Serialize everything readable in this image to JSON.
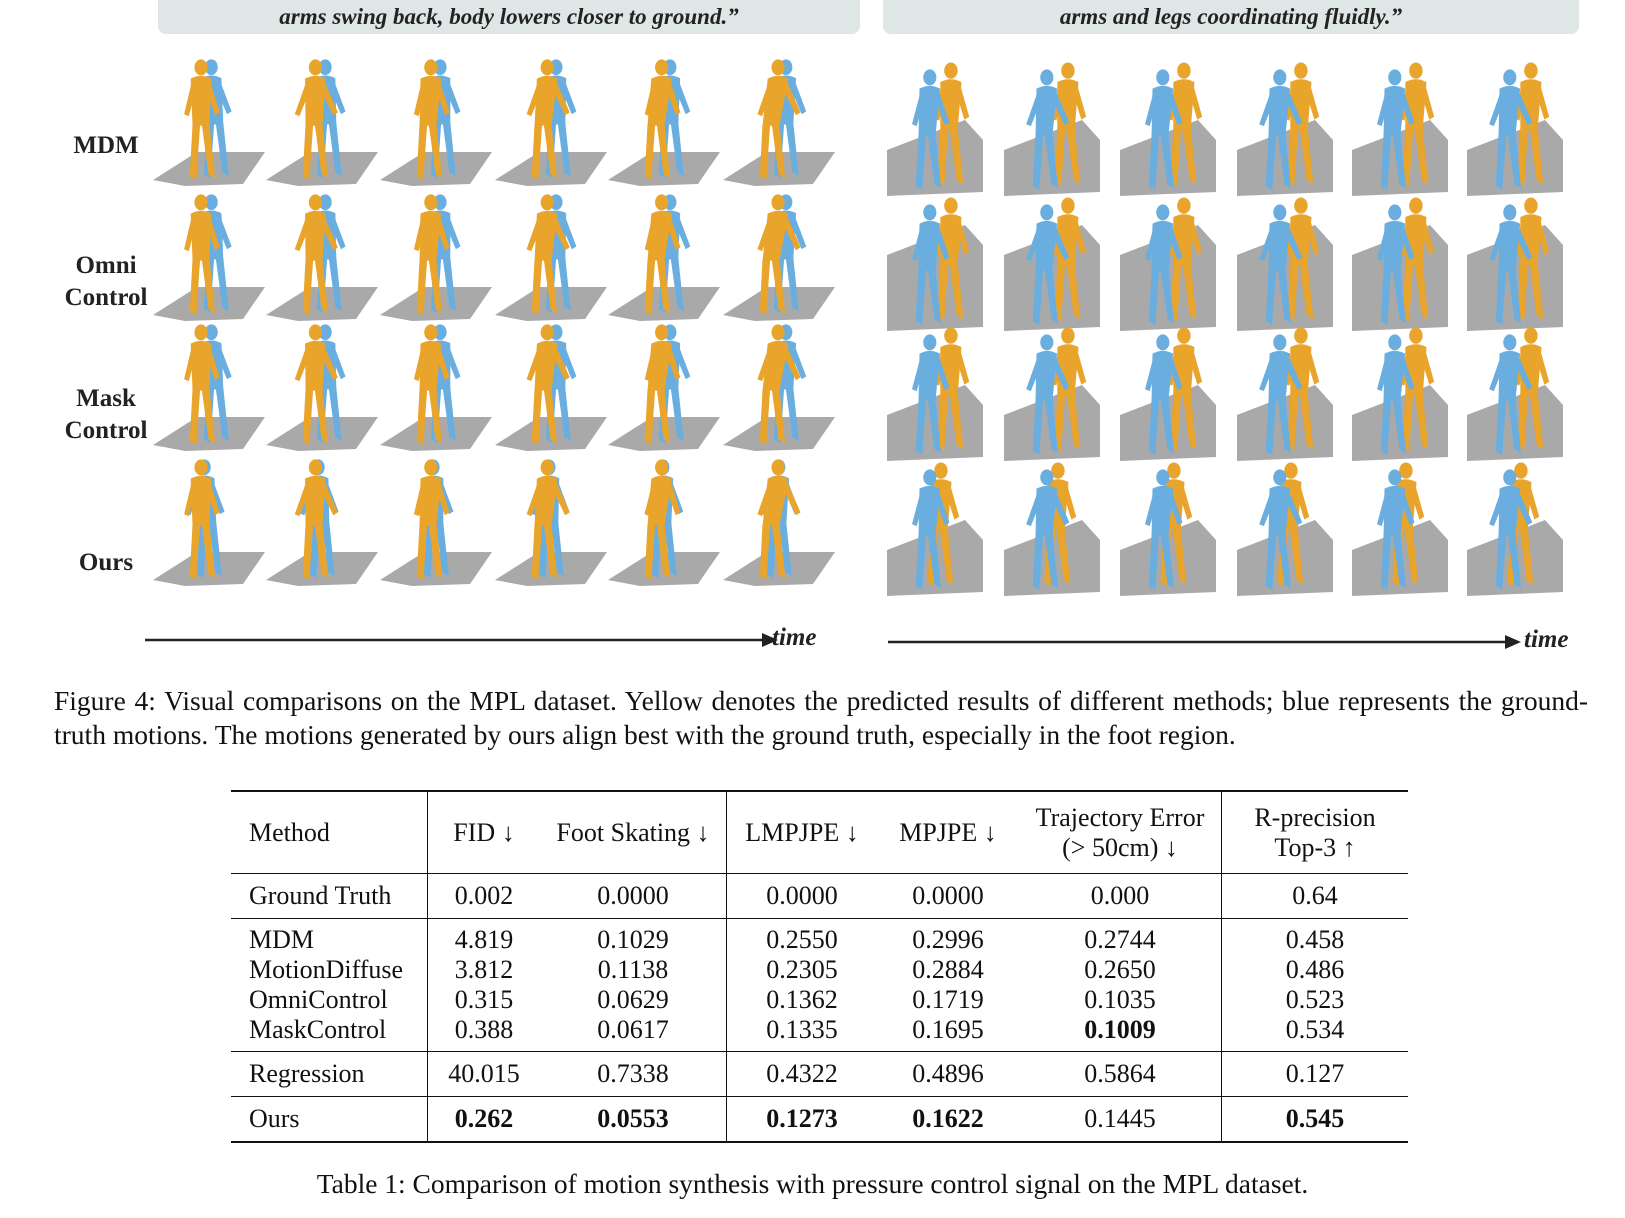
{
  "figure": {
    "prompt_left": "arms swing back, body lowers closer to ground.”",
    "prompt_right": "arms and legs coordinating fluidly.”",
    "row_labels": [
      {
        "line1": "MDM",
        "line2": ""
      },
      {
        "line1": "Omni",
        "line2": "Control"
      },
      {
        "line1": "Mask",
        "line2": "Control"
      },
      {
        "line1": "Ours",
        "line2": ""
      }
    ],
    "time_label": "time",
    "colors": {
      "predicted": "#e8a42b",
      "ground_truth": "#6aaee0",
      "floor": "#a9a9a9"
    },
    "caption": "Figure 4: Visual comparisons on the MPL dataset. Yellow denotes the predicted results of different methods; blue represents the ground-truth motions. The motions generated by ours align best with the ground truth, especially in the foot region."
  },
  "table": {
    "headers": {
      "method": "Method",
      "fid": "FID ↓",
      "foot": "Foot Skating ↓",
      "lmpjpe": "LMPJPE ↓",
      "mpjpe": "MPJPE ↓",
      "traj_line1": "Trajectory Error",
      "traj_line2": "(> 50cm) ↓",
      "rprec_line1": "R-precision",
      "rprec_line2": "Top-3 ↑"
    },
    "ground_truth": {
      "method": "Ground Truth",
      "fid": "0.002",
      "foot": "0.0000",
      "lmpjpe": "0.0000",
      "mpjpe": "0.0000",
      "traj": "0.000",
      "rprec": "0.64"
    },
    "baselines": [
      {
        "method": "MDM",
        "fid": "4.819",
        "foot": "0.1029",
        "lmpjpe": "0.2550",
        "mpjpe": "0.2996",
        "traj": "0.2744",
        "rprec": "0.458"
      },
      {
        "method": "MotionDiffuse",
        "fid": "3.812",
        "foot": "0.1138",
        "lmpjpe": "0.2305",
        "mpjpe": "0.2884",
        "traj": "0.2650",
        "rprec": "0.486"
      },
      {
        "method": "OmniControl",
        "fid": "0.315",
        "foot": "0.0629",
        "lmpjpe": "0.1362",
        "mpjpe": "0.1719",
        "traj": "0.1035",
        "rprec": "0.523"
      },
      {
        "method": "MaskControl",
        "fid": "0.388",
        "foot": "0.0617",
        "lmpjpe": "0.1335",
        "mpjpe": "0.1695",
        "traj": "0.1009",
        "rprec": "0.534"
      }
    ],
    "regression": {
      "method": "Regression",
      "fid": "40.015",
      "foot": "0.7338",
      "lmpjpe": "0.4322",
      "mpjpe": "0.4896",
      "traj": "0.5864",
      "rprec": "0.127"
    },
    "ours": {
      "method": "Ours",
      "fid": "0.262",
      "foot": "0.0553",
      "lmpjpe": "0.1273",
      "mpjpe": "0.1622",
      "traj": "0.1445",
      "rprec": "0.545"
    },
    "caption": "Table 1: Comparison of motion synthesis with pressure control signal on the MPL dataset."
  }
}
